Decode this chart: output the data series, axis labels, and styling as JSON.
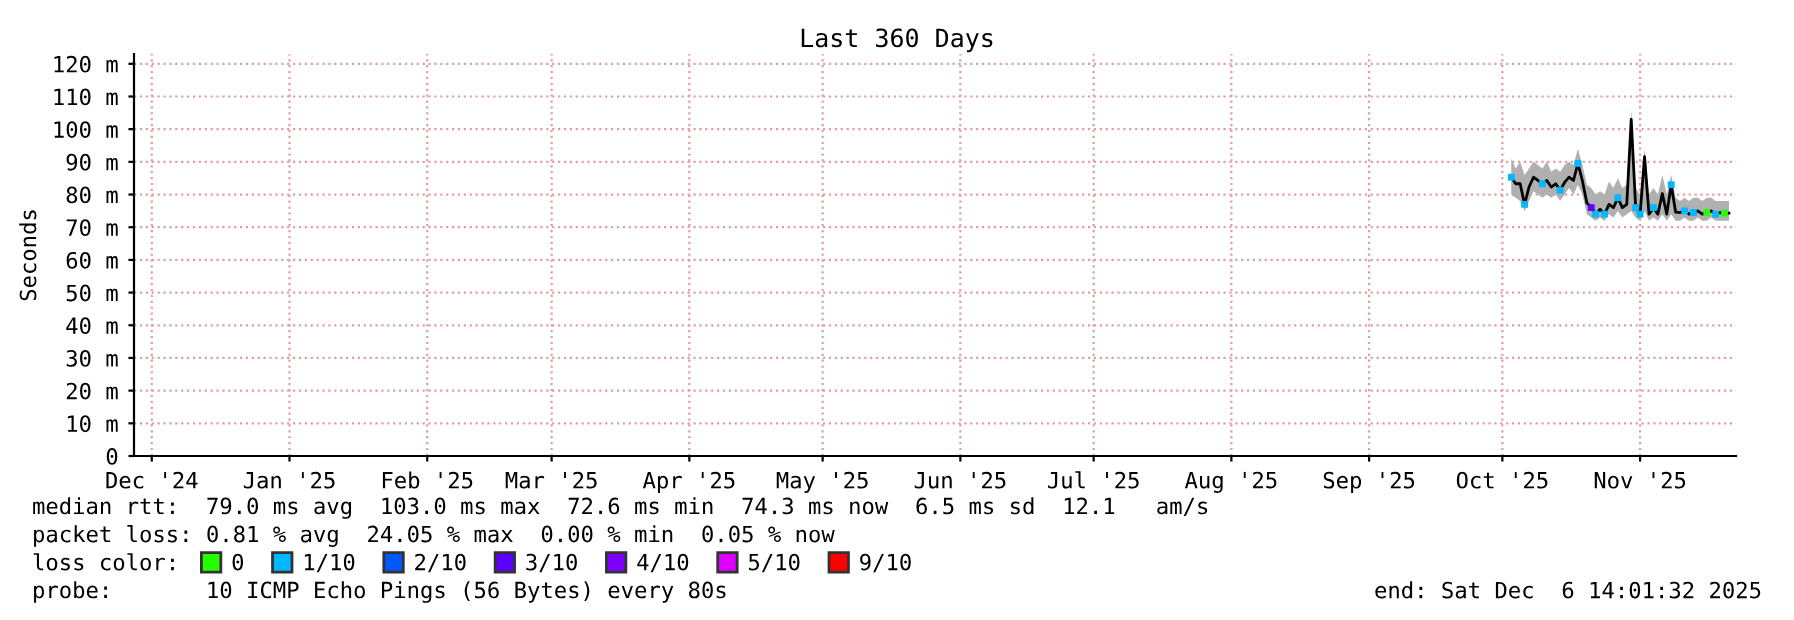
{
  "chart_data": {
    "type": "line",
    "title": "Last 360 Days",
    "ylabel": "Seconds",
    "legend_title": "loss color:",
    "annotations": [
      "median rtt:  79.0 ms avg  103.0 ms max  72.6 ms min  74.3 ms now  6.5 ms sd  12.1   am/s",
      "packet loss: 0.81 % avg  24.05 % max  0.00 % min  0.05 % now",
      "probe:       10 ICMP Echo Pings (56 Bytes) every 80s",
      "end: Sat Dec  6 14:01:32 2025"
    ],
    "x": [
      "2025-10-17",
      "2025-10-18",
      "2025-10-19",
      "2025-10-20",
      "2025-10-21",
      "2025-10-22",
      "2025-10-23",
      "2025-10-24",
      "2025-10-25",
      "2025-10-26",
      "2025-10-27",
      "2025-10-28",
      "2025-10-29",
      "2025-10-30",
      "2025-10-31",
      "2025-11-01",
      "2025-11-02",
      "2025-11-03",
      "2025-11-04",
      "2025-11-05",
      "2025-11-06",
      "2025-11-07",
      "2025-11-08",
      "2025-11-09",
      "2025-11-10",
      "2025-11-11",
      "2025-11-12",
      "2025-11-13",
      "2025-11-14",
      "2025-11-15",
      "2025-11-16",
      "2025-11-17",
      "2025-11-18",
      "2025-11-19",
      "2025-11-20",
      "2025-11-21",
      "2025-11-22",
      "2025-11-23",
      "2025-11-24",
      "2025-11-25",
      "2025-11-26",
      "2025-11-27",
      "2025-11-28",
      "2025-11-29",
      "2025-11-30",
      "2025-12-01",
      "2025-12-02",
      "2025-12-03",
      "2025-12-04",
      "2025-12-05"
    ],
    "series": [
      {
        "color": "#000000",
        "values": [
          85.3,
          83.3,
          83.3,
          77,
          82.3,
          85.3,
          84.3,
          83.3,
          84.3,
          82.3,
          83.3,
          81.3,
          83.7,
          85.3,
          84.3,
          89.5,
          84.3,
          77.5,
          76,
          74,
          75.5,
          74,
          77,
          76,
          79,
          76,
          77,
          103,
          76,
          74,
          91.6,
          74,
          76,
          74,
          80.3,
          74,
          83,
          74.6,
          74.5,
          75,
          74,
          74.5,
          75,
          74,
          74.5,
          75,
          74,
          74.5,
          74.3,
          74.3
        ],
        "lower": [
          80,
          79,
          78,
          75,
          78,
          81,
          80,
          79,
          80,
          79,
          80,
          78,
          80,
          82,
          80,
          83,
          80,
          74,
          73,
          72,
          73,
          72,
          74,
          73,
          75,
          73,
          74,
          75,
          73,
          72,
          75,
          72,
          73,
          72,
          74,
          72,
          74,
          72,
          72,
          73,
          72,
          72,
          73,
          72,
          72,
          73,
          72,
          72,
          72,
          72
        ],
        "upper": [
          91,
          88,
          90,
          86,
          88,
          90,
          89,
          88,
          90,
          87,
          88,
          87,
          89,
          90,
          89,
          94,
          89,
          83,
          82,
          80,
          81,
          80,
          84,
          82,
          85,
          82,
          83,
          106,
          82,
          80,
          94,
          80,
          82,
          80,
          86,
          80,
          86,
          79,
          78,
          79,
          78,
          79,
          79,
          78,
          79,
          79,
          78,
          78,
          78,
          78
        ]
      },
      {
        "type": "scatter",
        "name": "0",
        "color": "#26ff00",
        "x": [
          "2025-11-30",
          "2025-12-04"
        ],
        "values": [
          74.5,
          74.3
        ]
      },
      {
        "type": "scatter",
        "name": "1/10",
        "color": "#00b8ff",
        "x": [
          "2025-10-17",
          "2025-10-20",
          "2025-10-24",
          "2025-10-28",
          "2025-11-01",
          "2025-11-05",
          "2025-11-07",
          "2025-11-10",
          "2025-11-14",
          "2025-11-15",
          "2025-11-18",
          "2025-11-22",
          "2025-11-25",
          "2025-11-27",
          "2025-12-02"
        ],
        "values": [
          85.3,
          77,
          83.3,
          81.3,
          89.5,
          74,
          74,
          79,
          76,
          74,
          76,
          83,
          75,
          74.5,
          74
        ]
      },
      {
        "type": "scatter",
        "name": "2/10",
        "color": "#0059ff",
        "values": [
          null,
          null,
          null,
          null,
          null,
          null,
          null,
          null,
          null,
          null,
          null,
          null,
          null,
          null,
          null,
          null,
          null,
          null,
          null,
          null,
          null,
          null,
          null,
          null,
          null,
          null,
          null,
          null,
          null,
          null,
          null,
          null,
          null,
          null,
          null,
          null,
          null,
          null,
          null,
          null,
          null,
          null,
          null,
          null,
          null,
          null,
          null,
          null,
          null,
          null
        ]
      },
      {
        "type": "scatter",
        "name": "3/10",
        "color": "#5e00ff",
        "x": [
          "2025-11-04"
        ],
        "values": [
          76
        ]
      },
      {
        "type": "scatter",
        "name": "4/10",
        "color": "#7e00ff",
        "values": [
          null,
          null,
          null,
          null,
          null,
          null,
          null,
          null,
          null,
          null,
          null,
          null,
          null,
          null,
          null,
          null,
          null,
          null,
          null,
          null,
          null,
          null,
          null,
          null,
          null,
          null,
          null,
          null,
          null,
          null,
          null,
          null,
          null,
          null,
          null,
          null,
          null,
          null,
          null,
          null,
          null,
          null,
          null,
          null,
          null,
          null,
          null,
          null,
          null,
          null
        ]
      },
      {
        "type": "scatter",
        "name": "5/10",
        "color": "#dd00ff",
        "values": [
          null,
          null,
          null,
          null,
          null,
          null,
          null,
          null,
          null,
          null,
          null,
          null,
          null,
          null,
          null,
          null,
          null,
          null,
          null,
          null,
          null,
          null,
          null,
          null,
          null,
          null,
          null,
          null,
          null,
          null,
          null,
          null,
          null,
          null,
          null,
          null,
          null,
          null,
          null,
          null,
          null,
          null,
          null,
          null,
          null,
          null,
          null,
          null,
          null,
          null
        ]
      },
      {
        "type": "scatter",
        "name": "9/10",
        "color": "#ff0000",
        "values": [
          null,
          null,
          null,
          null,
          null,
          null,
          null,
          null,
          null,
          null,
          null,
          null,
          null,
          null,
          null,
          null,
          null,
          null,
          null,
          null,
          null,
          null,
          null,
          null,
          null,
          null,
          null,
          null,
          null,
          null,
          null,
          null,
          null,
          null,
          null,
          null,
          null,
          null,
          null,
          null,
          null,
          null,
          null,
          null,
          null,
          null,
          null,
          null,
          null,
          null
        ]
      }
    ],
    "xlim": [
      "2024-12-11",
      "2025-12-06T14:01"
    ],
    "xticks": [
      {
        "value": "2024-12-15",
        "label": "Dec '24"
      },
      {
        "value": "2025-01-15",
        "label": "Jan '25"
      },
      {
        "value": "2025-02-15",
        "label": "Feb '25"
      },
      {
        "value": "2025-03-15",
        "label": "Mar '25"
      },
      {
        "value": "2025-04-15",
        "label": "Apr '25"
      },
      {
        "value": "2025-05-15",
        "label": "May '25"
      },
      {
        "value": "2025-06-15",
        "label": "Jun '25"
      },
      {
        "value": "2025-07-15",
        "label": "Jul '25"
      },
      {
        "value": "2025-08-15",
        "label": "Aug '25"
      },
      {
        "value": "2025-09-15",
        "label": "Sep '25"
      },
      {
        "value": "2025-10-15",
        "label": "Oct '25"
      },
      {
        "value": "2025-11-15",
        "label": "Nov '25"
      }
    ],
    "ylim": [
      0,
      123
    ],
    "yticks": [
      0,
      {
        "value": 10,
        "label": "10 m"
      },
      {
        "value": 20,
        "label": "20 m"
      },
      {
        "value": 30,
        "label": "30 m"
      },
      {
        "value": 40,
        "label": "40 m"
      },
      {
        "value": 50,
        "label": "50 m"
      },
      {
        "value": 60,
        "label": "60 m"
      },
      {
        "value": 70,
        "label": "70 m"
      },
      {
        "value": 80,
        "label": "80 m"
      },
      {
        "value": 90,
        "label": "90 m"
      },
      {
        "value": 100,
        "label": "100 m"
      },
      {
        "value": 110,
        "label": "110 m"
      },
      {
        "value": 120,
        "label": "120 m"
      }
    ],
    "grid": true,
    "legend": "bottom"
  }
}
